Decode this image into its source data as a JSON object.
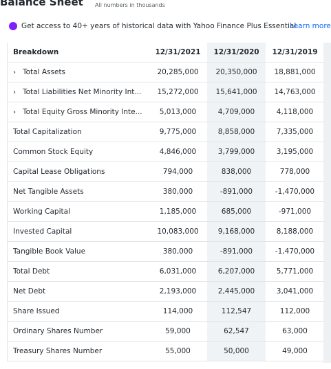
{
  "header": {
    "title": "Balance Sheet",
    "note": "All numbers in thousands"
  },
  "promo": {
    "text": "Get access to 40+ years of historical data with Yahoo Finance Plus Essential.",
    "link": "Learn more"
  },
  "table": {
    "columns": [
      "Breakdown",
      "12/31/2021",
      "12/31/2020",
      "12/31/2019"
    ],
    "rows": [
      {
        "label": "Total Assets",
        "values": [
          "20,285,000",
          "20,350,000",
          "18,881,000"
        ],
        "expandable": true
      },
      {
        "label": "Total Liabilities Net Minority Int...",
        "values": [
          "15,272,000",
          "15,641,000",
          "14,763,000"
        ],
        "expandable": true
      },
      {
        "label": "Total Equity Gross Minority Inte...",
        "values": [
          "5,013,000",
          "4,709,000",
          "4,118,000"
        ],
        "expandable": true
      },
      {
        "label": "Total Capitalization",
        "values": [
          "9,775,000",
          "8,858,000",
          "7,335,000"
        ],
        "expandable": false
      },
      {
        "label": "Common Stock Equity",
        "values": [
          "4,846,000",
          "3,799,000",
          "3,195,000"
        ],
        "expandable": false
      },
      {
        "label": "Capital Lease Obligations",
        "values": [
          "794,000",
          "838,000",
          "778,000"
        ],
        "expandable": false
      },
      {
        "label": "Net Tangible Assets",
        "values": [
          "380,000",
          "-891,000",
          "-1,470,000"
        ],
        "expandable": false
      },
      {
        "label": "Working Capital",
        "values": [
          "1,185,000",
          "685,000",
          "-971,000"
        ],
        "expandable": false
      },
      {
        "label": "Invested Capital",
        "values": [
          "10,083,000",
          "9,168,000",
          "8,188,000"
        ],
        "expandable": false
      },
      {
        "label": "Tangible Book Value",
        "values": [
          "380,000",
          "-891,000",
          "-1,470,000"
        ],
        "expandable": false
      },
      {
        "label": "Total Debt",
        "values": [
          "6,031,000",
          "6,207,000",
          "5,771,000"
        ],
        "expandable": false
      },
      {
        "label": "Net Debt",
        "values": [
          "2,193,000",
          "2,445,000",
          "3,041,000"
        ],
        "expandable": false
      },
      {
        "label": "Share Issued",
        "values": [
          "114,000",
          "112,547",
          "112,000"
        ],
        "expandable": false
      },
      {
        "label": "Ordinary Shares Number",
        "values": [
          "59,000",
          "62,547",
          "63,000"
        ],
        "expandable": false
      },
      {
        "label": "Treasury Shares Number",
        "values": [
          "55,000",
          "50,000",
          "49,000"
        ],
        "expandable": false
      }
    ]
  }
}
